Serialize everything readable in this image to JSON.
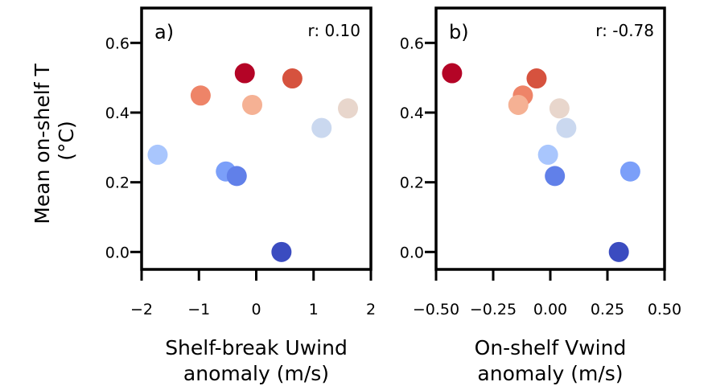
{
  "shared_ylabel_lines": [
    "Mean on-shelf T",
    "(°C)"
  ],
  "chart_data": [
    {
      "type": "scatter",
      "panel_label": "a)",
      "annotation": "r: 0.10",
      "xlabel_lines": [
        "Shelf-break Uwind",
        "anomaly (m/s)"
      ],
      "xlim": [
        -2,
        2
      ],
      "ylim": [
        -0.05,
        0.7
      ],
      "xticks": [
        -2,
        -1,
        0,
        1,
        2
      ],
      "xtick_labels": [
        "−2",
        "−1",
        "0",
        "1",
        "2"
      ],
      "yticks": [
        0.0,
        0.2,
        0.4,
        0.6
      ],
      "ytick_labels": [
        "0.0",
        "0.2",
        "0.4",
        "0.6"
      ],
      "points": [
        {
          "x": -0.2,
          "y": 0.513,
          "color": "#b40426"
        },
        {
          "x": 0.63,
          "y": 0.498,
          "color": "#d6523e"
        },
        {
          "x": -0.97,
          "y": 0.449,
          "color": "#ee8468"
        },
        {
          "x": -0.07,
          "y": 0.422,
          "color": "#f5b194"
        },
        {
          "x": 1.6,
          "y": 0.412,
          "color": "#e8d6cc"
        },
        {
          "x": 1.14,
          "y": 0.356,
          "color": "#cad8ef"
        },
        {
          "x": -1.72,
          "y": 0.279,
          "color": "#a9c6fd"
        },
        {
          "x": -0.53,
          "y": 0.231,
          "color": "#7b9ff9"
        },
        {
          "x": -0.34,
          "y": 0.218,
          "color": "#6180e9"
        },
        {
          "x": 0.44,
          "y": 0.0,
          "color": "#3b4cc0"
        }
      ]
    },
    {
      "type": "scatter",
      "panel_label": "b)",
      "annotation": "r: -0.78",
      "xlabel_lines": [
        "On-shelf Vwind",
        "anomaly (m/s)"
      ],
      "xlim": [
        -0.5,
        0.5
      ],
      "ylim": [
        -0.05,
        0.7
      ],
      "xticks": [
        -0.5,
        -0.25,
        0.0,
        0.25,
        0.5
      ],
      "xtick_labels": [
        "−0.50",
        "−0.25",
        "0.00",
        "0.25",
        "0.50"
      ],
      "yticks": [
        0.0,
        0.2,
        0.4,
        0.6
      ],
      "ytick_labels": [
        "0.0",
        "0.2",
        "0.4",
        "0.6"
      ],
      "points": [
        {
          "x": -0.43,
          "y": 0.513,
          "color": "#b40426"
        },
        {
          "x": -0.06,
          "y": 0.498,
          "color": "#d6523e"
        },
        {
          "x": -0.12,
          "y": 0.449,
          "color": "#ee8468"
        },
        {
          "x": -0.14,
          "y": 0.422,
          "color": "#f5b194"
        },
        {
          "x": 0.04,
          "y": 0.412,
          "color": "#e8d6cc"
        },
        {
          "x": 0.07,
          "y": 0.356,
          "color": "#cad8ef"
        },
        {
          "x": -0.01,
          "y": 0.279,
          "color": "#a9c6fd"
        },
        {
          "x": 0.35,
          "y": 0.231,
          "color": "#7b9ff9"
        },
        {
          "x": 0.02,
          "y": 0.218,
          "color": "#6180e9"
        },
        {
          "x": 0.3,
          "y": 0.0,
          "color": "#3b4cc0"
        }
      ]
    }
  ]
}
